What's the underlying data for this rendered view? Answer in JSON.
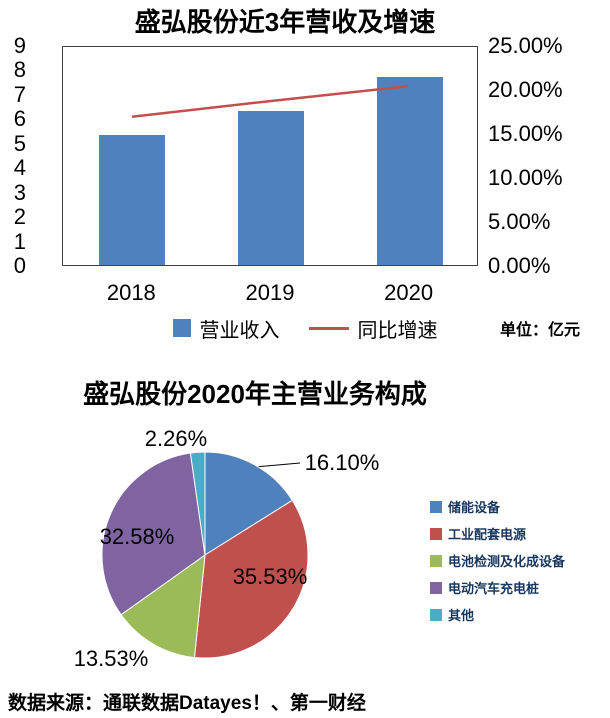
{
  "source_note": "数据来源：通联数据Datayes！、第一财经",
  "chart_data": [
    {
      "type": "bar",
      "title": "盛弘股份近3年营收及增速",
      "categories": [
        "2018",
        "2019",
        "2020"
      ],
      "series": [
        {
          "key": "revenue",
          "name": "营业收入",
          "chart": "bar",
          "axis": "left",
          "unit": "亿元",
          "color": "#4F81BD",
          "values": [
            5.3,
            6.3,
            7.7
          ]
        },
        {
          "key": "yoy-growth",
          "name": "同比增速",
          "chart": "line",
          "axis": "right",
          "unit": "%",
          "color": "#C0504D",
          "values": [
            17.0,
            18.8,
            20.5
          ]
        }
      ],
      "left_axis": {
        "min": 0,
        "max": 9,
        "step": 1
      },
      "right_axis": {
        "min": 0,
        "max": 25,
        "step": 5,
        "format": "0.00%"
      },
      "unit_note": "单位：亿元",
      "legend_position": "bottom",
      "grid": false
    },
    {
      "type": "pie",
      "title": "盛弘股份2020年主营业务构成",
      "slices": [
        {
          "key": "storage-equipment",
          "name": "储能设备",
          "value": 16.1,
          "label": "16.10%",
          "color": "#4F81BD"
        },
        {
          "key": "industrial-power",
          "name": "工业配套电源",
          "value": 35.53,
          "label": "35.53%",
          "color": "#C0504D"
        },
        {
          "key": "battery-testing",
          "name": "电池检测及化成设备",
          "value": 13.53,
          "label": "13.53%",
          "color": "#9BBB59"
        },
        {
          "key": "ev-charging",
          "name": "电动汽车充电桩",
          "value": 32.58,
          "label": "32.58%",
          "color": "#8064A2"
        },
        {
          "key": "other",
          "name": "其他",
          "value": 2.26,
          "label": "2.26%",
          "color": "#4BACC6"
        }
      ],
      "legend_position": "right"
    }
  ]
}
